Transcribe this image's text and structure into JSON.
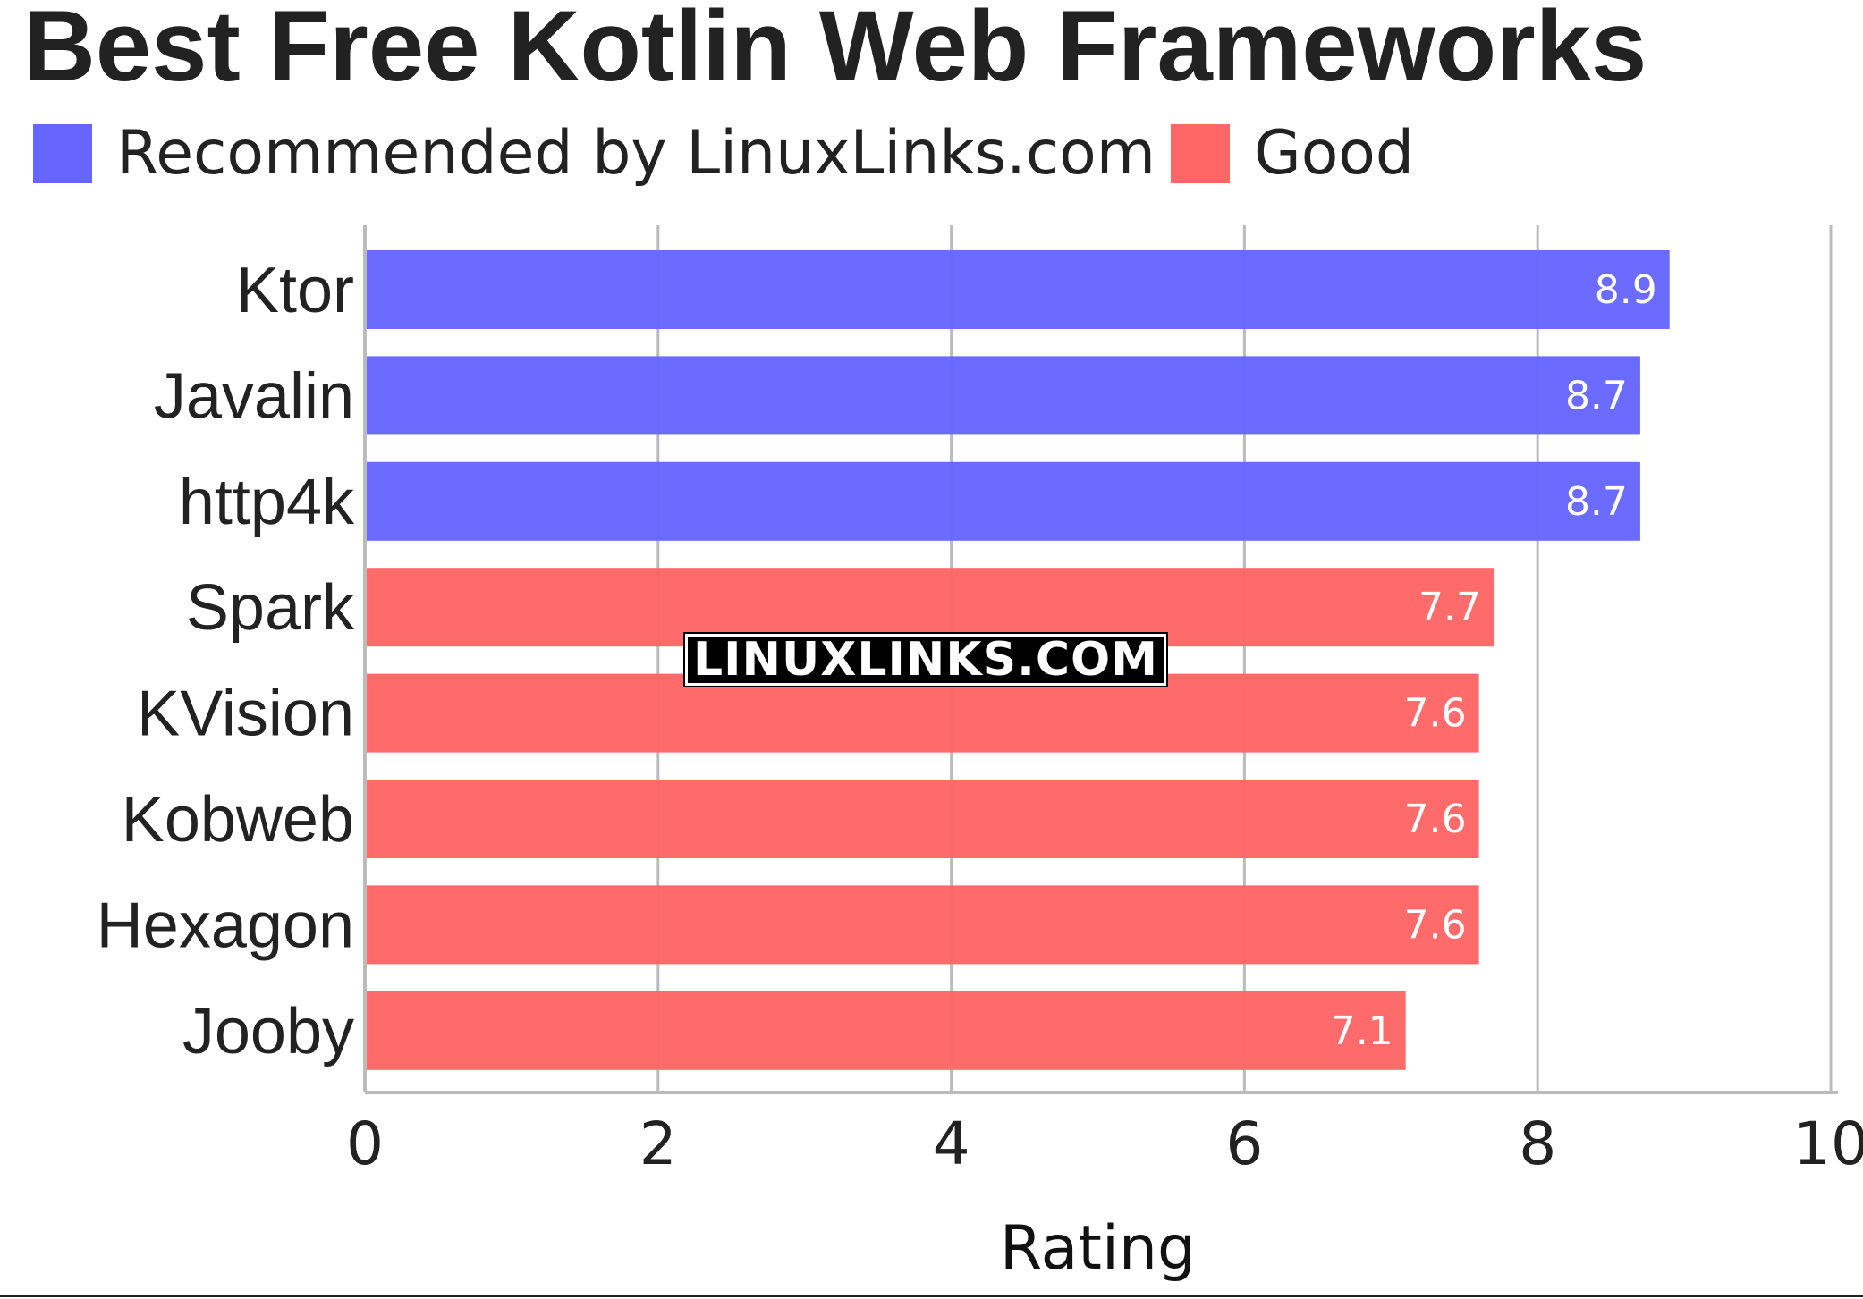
{
  "chart_data": {
    "type": "bar",
    "orientation": "horizontal",
    "title": "Best Free Kotlin Web Frameworks",
    "categories": [
      "Ktor",
      "Javalin",
      "http4k",
      "Spark",
      "KVision",
      "Kobweb",
      "Hexagon",
      "Jooby"
    ],
    "values": [
      8.9,
      8.7,
      8.7,
      7.7,
      7.6,
      7.6,
      7.6,
      7.1
    ],
    "value_labels": [
      "8.9",
      "8.7",
      "8.7",
      "7.7",
      "7.6",
      "7.6",
      "7.6",
      "7.1"
    ],
    "groups": [
      "recommended",
      "recommended",
      "recommended",
      "good",
      "good",
      "good",
      "good",
      "good"
    ],
    "legend": [
      {
        "key": "recommended",
        "label": "Recommended by LinuxLinks.com",
        "color": "#6666ff"
      },
      {
        "key": "good",
        "label": "Good",
        "color": "#ff6666"
      }
    ],
    "legend_position": "top-left",
    "xlabel": "Rating",
    "ylabel": "",
    "xlim": [
      0,
      10
    ],
    "xticks": [
      0,
      2,
      4,
      6,
      8,
      10
    ],
    "xtick_labels": [
      "0",
      "2",
      "4",
      "6",
      "8",
      "10"
    ],
    "grid": true,
    "grid_color": "#bbbbbb",
    "value_label_color": "#ffffff"
  },
  "watermark": "LINUXLINKS.COM"
}
